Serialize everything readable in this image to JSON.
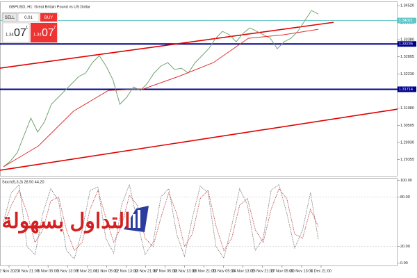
{
  "header": {
    "symbol_title": "GBPUSD, H1: Great Britain Pound vs US Dollar"
  },
  "trade_panel": {
    "sell": "SELL",
    "buy": "BUY",
    "lot": "0.01",
    "sell_price": "1.34",
    "sell_big": "07",
    "sell_sup": "1",
    "buy_price": "1.34",
    "buy_big": "07",
    "buy_sup": "7"
  },
  "watermark": "التداول بسهولة",
  "time_axis": [
    "2 Nov 2020",
    "3 Nov 21:00",
    "5 Nov 05:00",
    "6 Nov 13:00",
    "9 Nov 21:00",
    "11 Nov 05:00",
    "12 Nov 13:00",
    "13 Nov 21:00",
    "17 Nov 05:00",
    "18 Nov 13:00",
    "19 Nov 21:00",
    "23 Nov 05:00",
    "24 Nov 13:00",
    "25 Nov 21:00",
    "27 Nov 05:00",
    "30 Nov 13:00",
    "1 Dec 21:00"
  ],
  "chart_data": [
    {
      "type": "line",
      "ylim": [
        1.2881,
        1.3464
      ],
      "yticks": [
        1.29355,
        {
          "value": 1.2993,
          "label": "1.29930"
        },
        1.30505,
        {
          "value": 1.3108,
          "label": "1.31080"
        },
        1.31655,
        {
          "value": 1.3223,
          "label": "1.32230"
        },
        1.32805,
        {
          "value": 1.3338,
          "label": "1.33380"
        },
        1.33955,
        {
          "value": 1.3452,
          "label": "1.34520"
        }
      ],
      "series": [
        {
          "color": "#6fa36f",
          "values": [
            1.29114,
            1.29301,
            1.2958,
            1.30163,
            1.30745,
            1.30279,
            1.30629,
            1.31211,
            1.31444,
            1.31677,
            1.3191,
            1.32143,
            1.3226,
            1.32609,
            1.32842,
            1.32493,
            1.32027,
            1.31211,
            1.31444,
            1.31794,
            1.31677,
            1.3191,
            1.3226,
            1.32493,
            1.32609,
            1.32376,
            1.32423,
            1.3226,
            1.32609,
            1.32842,
            1.33075,
            1.33425,
            1.33658,
            1.33541,
            1.33308,
            1.33588,
            1.33774,
            1.33658,
            1.33541,
            1.33425,
            1.33075,
            1.33308,
            1.33425,
            1.33658,
            1.34007,
            1.34357,
            1.3424
          ]
        },
        {
          "color": "#e03030",
          "values": [
            1.29114,
            1.29813,
            1.30978,
            1.31677,
            1.31724,
            1.32143,
            1.32609,
            1.33425,
            1.33541,
            1.33728
          ]
        }
      ],
      "trendlines": [
        {
          "color": "#e00000",
          "values": [
            1.32423,
            1.33961
          ]
        },
        {
          "color": "#e00000",
          "values": [
            1.28998,
            1.31048
          ]
        }
      ],
      "levels": [
        1.34021,
        1.33235,
        1.31714
      ],
      "level_colors": [
        "#5fc7c7",
        "#00008b",
        "#00008b"
      ]
    },
    {
      "type": "line",
      "title": "Stoch(5,3,3) 28.50 44.20",
      "ylim": [
        -3,
        103
      ],
      "yticks": [
        {
          "value": 0,
          "label": "0.00"
        },
        {
          "value": 20,
          "label": "20.00"
        },
        {
          "value": 80,
          "label": "80.00"
        },
        {
          "value": 100,
          "label": "100.00"
        }
      ],
      "series": [
        {
          "color": "#777777",
          "values": [
            50,
            85,
            95,
            20,
            10,
            60,
            90,
            75,
            15,
            5,
            40,
            88,
            92,
            30,
            12,
            70,
            95,
            50,
            10,
            25,
            80,
            90,
            35,
            8,
            55,
            93,
            85,
            20,
            6,
            45,
            90,
            70,
            15,
            30,
            88,
            95,
            60,
            18,
            40,
            85,
            28.5
          ]
        },
        {
          "color": "#c04040",
          "values": [
            45,
            70,
            88,
            60,
            25,
            40,
            75,
            80,
            40,
            15,
            25,
            65,
            88,
            55,
            25,
            45,
            82,
            70,
            30,
            20,
            55,
            85,
            60,
            20,
            35,
            78,
            88,
            45,
            15,
            30,
            70,
            78,
            40,
            25,
            65,
            90,
            78,
            35,
            30,
            65,
            44.2
          ]
        }
      ]
    }
  ]
}
